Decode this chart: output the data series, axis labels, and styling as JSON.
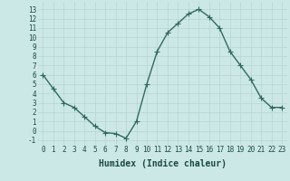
{
  "x": [
    0,
    1,
    2,
    3,
    4,
    5,
    6,
    7,
    8,
    9,
    10,
    11,
    12,
    13,
    14,
    15,
    16,
    17,
    18,
    19,
    20,
    21,
    22,
    23
  ],
  "y": [
    6,
    4.5,
    3,
    2.5,
    1.5,
    0.5,
    -0.2,
    -0.3,
    -0.8,
    1,
    5,
    8.5,
    10.5,
    11.5,
    12.5,
    13,
    12.2,
    11,
    8.5,
    7,
    5.5,
    3.5,
    2.5,
    2.5
  ],
  "line_color": "#2e6b5e",
  "marker": "+",
  "markersize": 4,
  "linewidth": 1.0,
  "markeredgewidth": 0.8,
  "background_color": "#cce8e6",
  "grid_color": "#b8d4d2",
  "xlabel": "Humidex (Indice chaleur)",
  "xlabel_fontsize": 7,
  "xlabel_color": "#1a4a42",
  "tick_color": "#1a4a42",
  "ylim": [
    -1.5,
    13.8
  ],
  "xlim": [
    -0.5,
    23.5
  ],
  "yticks": [
    -1,
    0,
    1,
    2,
    3,
    4,
    5,
    6,
    7,
    8,
    9,
    10,
    11,
    12,
    13
  ],
  "xticks": [
    0,
    1,
    2,
    3,
    4,
    5,
    6,
    7,
    8,
    9,
    10,
    11,
    12,
    13,
    14,
    15,
    16,
    17,
    18,
    19,
    20,
    21,
    22,
    23
  ],
  "tick_fontsize": 5.5
}
